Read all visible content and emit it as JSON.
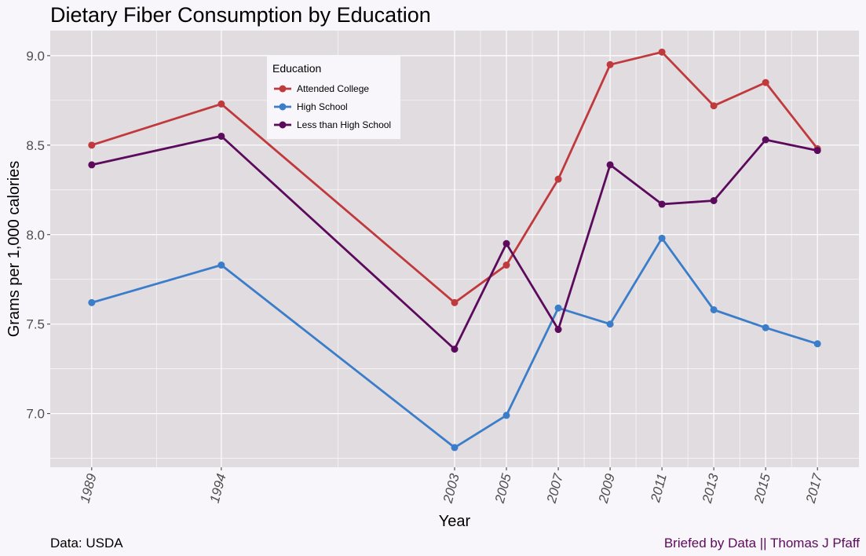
{
  "chart_data": {
    "type": "line",
    "title": "Dietary Fiber Consumption by Education",
    "xlabel": "Year",
    "ylabel": "Grams per 1,000 calories",
    "x": [
      1989,
      1994,
      2003,
      2005,
      2007,
      2009,
      2011,
      2013,
      2015,
      2017
    ],
    "x_tick_labels": [
      "1989",
      "1994",
      "2003",
      "2005",
      "2007",
      "2009",
      "2011",
      "2013",
      "2015",
      "2017"
    ],
    "y_ticks": [
      7.0,
      7.5,
      8.0,
      8.5,
      9.0
    ],
    "y_tick_labels": [
      "7.0",
      "7.5",
      "8.0",
      "8.5",
      "9.0"
    ],
    "xlim": [
      1987.4,
      2018.6
    ],
    "ylim": [
      6.7,
      9.14
    ],
    "grid": true,
    "legend": {
      "title": "Education",
      "placement": "top-left inside plot"
    },
    "series": [
      {
        "name": "Attended College",
        "color": "#c0393c",
        "values": [
          8.5,
          8.73,
          7.62,
          7.83,
          8.31,
          8.95,
          9.02,
          8.72,
          8.85,
          8.48
        ]
      },
      {
        "name": "High School",
        "color": "#3b7dc9",
        "values": [
          7.62,
          7.83,
          6.81,
          6.99,
          7.59,
          7.5,
          7.98,
          7.58,
          7.48,
          7.39
        ]
      },
      {
        "name": "Less than High School",
        "color": "#5c0a5c",
        "values": [
          8.39,
          8.55,
          7.36,
          7.95,
          7.47,
          8.39,
          8.17,
          8.19,
          8.53,
          8.47
        ]
      }
    ]
  },
  "footer": {
    "source": "Data: USDA",
    "credit": "Briefed by Data || Thomas J Pfaff"
  },
  "colors": {
    "panel_background": "#e0dce0",
    "page_background": "#f8f6fa",
    "grid": "#ffffff"
  }
}
